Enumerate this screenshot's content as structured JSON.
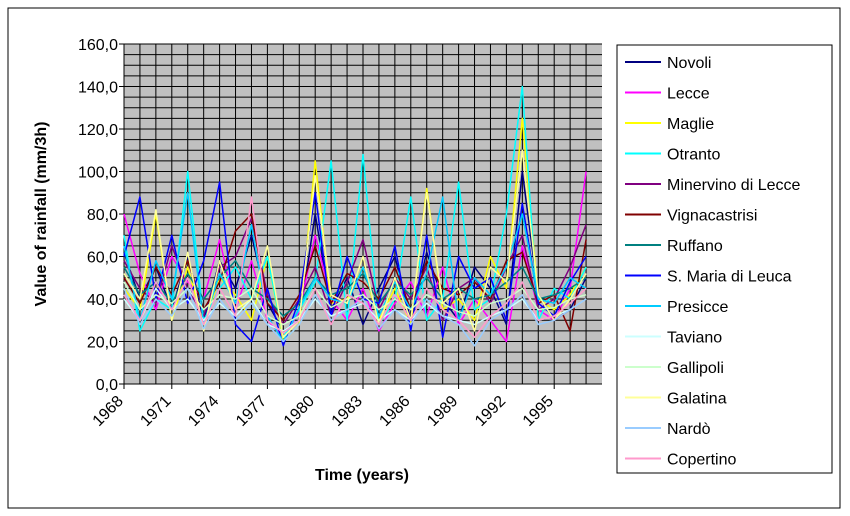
{
  "chart_data": {
    "type": "line",
    "title": "",
    "xlabel": "Time (years)",
    "ylabel": "Value of rainfall (mm/3h)",
    "ylim": [
      0,
      160
    ],
    "yticks": [
      "0,0",
      "20,0",
      "40,0",
      "60,0",
      "80,0",
      "100,0",
      "120,0",
      "140,0",
      "160,0"
    ],
    "xticks": [
      "1968",
      "1971",
      "1974",
      "1977",
      "1980",
      "1983",
      "1986",
      "1989",
      "1992",
      "1995"
    ],
    "x": [
      1968,
      1969,
      1970,
      1971,
      1972,
      1973,
      1974,
      1975,
      1976,
      1977,
      1978,
      1979,
      1980,
      1981,
      1982,
      1983,
      1984,
      1985,
      1986,
      1987,
      1988,
      1989,
      1990,
      1991,
      1992,
      1993,
      1994,
      1995,
      1996,
      1997
    ],
    "grid": true,
    "legend_position": "right",
    "series": [
      {
        "name": "Novoli",
        "color": "#000080",
        "values": [
          62,
          40,
          55,
          35,
          60,
          30,
          58,
          45,
          70,
          38,
          25,
          30,
          80,
          35,
          50,
          28,
          45,
          60,
          30,
          62,
          40,
          30,
          55,
          45,
          28,
          100,
          42,
          30,
          35,
          50
        ]
      },
      {
        "name": "Lecce",
        "color": "#ff00ff",
        "values": [
          80,
          52,
          35,
          60,
          48,
          40,
          68,
          35,
          58,
          30,
          22,
          34,
          70,
          40,
          30,
          45,
          25,
          38,
          48,
          32,
          55,
          28,
          40,
          30,
          20,
          65,
          35,
          30,
          45,
          100
        ]
      },
      {
        "name": "Maglie",
        "color": "#ffff00",
        "values": [
          45,
          35,
          80,
          30,
          55,
          28,
          50,
          42,
          30,
          60,
          20,
          28,
          105,
          38,
          40,
          55,
          30,
          45,
          28,
          92,
          35,
          40,
          30,
          60,
          45,
          125,
          40,
          35,
          42,
          55
        ]
      },
      {
        "name": "Otranto",
        "color": "#00ffff",
        "values": [
          70,
          25,
          40,
          35,
          100,
          30,
          45,
          55,
          40,
          60,
          22,
          35,
          48,
          105,
          30,
          108,
          28,
          40,
          88,
          30,
          40,
          95,
          35,
          40,
          80,
          140,
          30,
          45,
          40,
          55
        ]
      },
      {
        "name": "Minervino di Lecce",
        "color": "#800080",
        "values": [
          58,
          45,
          38,
          65,
          45,
          32,
          55,
          60,
          78,
          42,
          28,
          40,
          55,
          32,
          48,
          68,
          35,
          50,
          40,
          55,
          30,
          45,
          50,
          38,
          55,
          70,
          35,
          40,
          55,
          75
        ]
      },
      {
        "name": "Vignacastrisi",
        "color": "#800000",
        "values": [
          50,
          38,
          55,
          42,
          58,
          35,
          48,
          72,
          80,
          38,
          30,
          42,
          65,
          38,
          52,
          48,
          40,
          55,
          35,
          58,
          45,
          42,
          48,
          40,
          58,
          62,
          38,
          42,
          25,
          68
        ]
      },
      {
        "name": "Ruffano",
        "color": "#008080",
        "values": [
          55,
          42,
          48,
          38,
          52,
          40,
          50,
          58,
          45,
          40,
          32,
          38,
          50,
          42,
          45,
          52,
          38,
          48,
          42,
          50,
          40,
          45,
          40,
          42,
          48,
          55,
          40,
          42,
          45,
          50
        ]
      },
      {
        "name": "S. Maria di Leuca",
        "color": "#0000ff",
        "values": [
          60,
          88,
          40,
          70,
          38,
          58,
          95,
          28,
          20,
          45,
          18,
          40,
          90,
          32,
          60,
          40,
          38,
          65,
          25,
          70,
          22,
          60,
          45,
          50,
          30,
          85,
          38,
          32,
          48,
          60
        ]
      },
      {
        "name": "Presicce",
        "color": "#00ccff",
        "values": [
          65,
          30,
          58,
          40,
          90,
          28,
          52,
          38,
          75,
          32,
          20,
          36,
          50,
          40,
          38,
          55,
          32,
          48,
          35,
          52,
          88,
          30,
          50,
          42,
          55,
          80,
          40,
          38,
          50,
          45
        ]
      },
      {
        "name": "Taviano",
        "color": "#ccffff",
        "values": [
          40,
          30,
          45,
          35,
          40,
          30,
          38,
          32,
          40,
          28,
          25,
          30,
          40,
          32,
          35,
          38,
          30,
          35,
          30,
          38,
          32,
          30,
          28,
          32,
          35,
          40,
          30,
          32,
          35,
          40
        ]
      },
      {
        "name": "Gallipoli",
        "color": "#ccffcc",
        "values": [
          48,
          35,
          42,
          38,
          45,
          35,
          42,
          40,
          45,
          32,
          28,
          32,
          45,
          36,
          40,
          42,
          35,
          40,
          35,
          42,
          38,
          34,
          32,
          38,
          40,
          45,
          35,
          36,
          40,
          42
        ]
      },
      {
        "name": "Galatina",
        "color": "#ffff99",
        "values": [
          52,
          40,
          82,
          30,
          62,
          25,
          58,
          35,
          40,
          65,
          22,
          30,
          98,
          42,
          38,
          60,
          28,
          50,
          30,
          90,
          38,
          45,
          25,
          55,
          48,
          110,
          42,
          30,
          40,
          52
        ]
      },
      {
        "name": "Nardò",
        "color": "#99ccff",
        "values": [
          45,
          28,
          40,
          32,
          45,
          26,
          40,
          30,
          38,
          28,
          20,
          28,
          42,
          30,
          35,
          40,
          26,
          35,
          28,
          40,
          32,
          28,
          18,
          30,
          35,
          42,
          28,
          30,
          35,
          40
        ]
      },
      {
        "name": "Copertino",
        "color": "#ff99cc",
        "values": [
          42,
          30,
          48,
          35,
          50,
          28,
          45,
          32,
          88,
          30,
          24,
          30,
          45,
          28,
          42,
          38,
          28,
          42,
          30,
          45,
          35,
          30,
          22,
          32,
          38,
          48,
          30,
          32,
          38,
          45
        ]
      }
    ]
  }
}
